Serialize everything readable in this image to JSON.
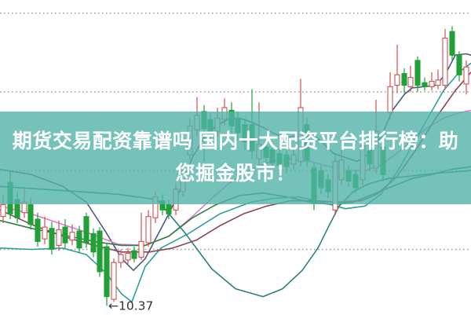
{
  "headline": {
    "line1": "期货交易配资靠谱吗 国内十大配资平台排行榜：助",
    "line2": "您掘金股市！",
    "text_color": "#ffffff",
    "banner_color": "rgba(81,179,169,0.8)"
  },
  "chart_data": {
    "type": "candlestick",
    "title": "",
    "xlabel": "",
    "ylabel": "",
    "grid": true,
    "legend": false,
    "ylim": [
      10.3,
      12.7
    ],
    "gridline_prices": [
      12.6,
      12.0,
      11.4,
      10.8
    ],
    "grid_color": "#9a9a9a",
    "up_color": "#cf5050",
    "down_color": "#21a038",
    "background_color": "#ffffff",
    "annotation": {
      "arrow": "←",
      "text": "10.37",
      "candle_x": 136,
      "price": 10.37,
      "color": "#333333"
    },
    "candle_body_width": 6,
    "candles": [
      [
        4,
        11.05,
        11.22,
        11.0,
        11.14
      ],
      [
        13,
        11.31,
        11.4,
        11.03,
        11.07
      ],
      [
        22,
        11.18,
        11.24,
        11.0,
        11.04
      ],
      [
        31,
        11.08,
        11.28,
        11.04,
        11.16
      ],
      [
        39,
        11.14,
        11.19,
        10.95,
        10.99
      ],
      [
        48,
        11.03,
        11.08,
        10.82,
        10.86
      ],
      [
        57,
        10.88,
        11.05,
        10.84,
        10.97
      ],
      [
        66,
        10.96,
        11.01,
        10.76,
        10.8
      ],
      [
        75,
        10.83,
        11.02,
        10.79,
        10.95
      ],
      [
        83,
        10.97,
        11.03,
        10.81,
        10.85
      ],
      [
        92,
        10.87,
        10.99,
        10.83,
        10.93
      ],
      [
        101,
        10.94,
        10.98,
        10.77,
        10.81
      ],
      [
        110,
        11.05,
        11.08,
        10.81,
        10.85
      ],
      [
        119,
        10.92,
        10.96,
        10.74,
        10.78
      ],
      [
        127,
        10.94,
        10.97,
        10.59,
        10.63
      ],
      [
        136,
        10.82,
        10.85,
        10.37,
        10.44
      ],
      [
        145,
        10.42,
        10.73,
        10.4,
        10.7
      ],
      [
        154,
        10.7,
        10.8,
        10.66,
        10.76
      ],
      [
        163,
        10.72,
        10.81,
        10.69,
        10.77
      ],
      [
        171,
        10.79,
        10.82,
        10.7,
        10.73
      ],
      [
        180,
        10.74,
        11.08,
        10.72,
        10.86
      ],
      [
        189,
        10.85,
        11.1,
        10.82,
        11.05
      ],
      [
        198,
        11.04,
        11.24,
        11.0,
        11.2
      ],
      [
        207,
        11.17,
        11.22,
        11.06,
        11.1
      ],
      [
        215,
        11.14,
        11.18,
        11.03,
        11.07
      ],
      [
        224,
        11.1,
        11.3,
        11.06,
        11.26
      ],
      [
        233,
        11.24,
        11.45,
        11.2,
        11.4
      ],
      [
        242,
        11.52,
        11.8,
        11.48,
        11.74
      ],
      [
        251,
        11.71,
        11.96,
        11.66,
        11.82
      ],
      [
        260,
        11.85,
        11.9,
        11.47,
        11.72
      ],
      [
        268,
        11.79,
        11.84,
        11.62,
        11.68
      ],
      [
        277,
        11.7,
        11.88,
        11.66,
        11.8
      ],
      [
        286,
        11.79,
        11.95,
        11.74,
        11.88
      ],
      [
        295,
        11.86,
        11.92,
        11.69,
        11.74
      ],
      [
        303,
        11.8,
        11.85,
        11.63,
        11.69
      ],
      [
        312,
        11.75,
        11.8,
        11.56,
        11.62
      ],
      [
        321,
        11.75,
        12.02,
        11.49,
        11.55
      ],
      [
        330,
        11.49,
        11.92,
        11.44,
        11.6
      ],
      [
        339,
        11.58,
        11.63,
        11.46,
        11.5
      ],
      [
        347,
        11.56,
        11.6,
        11.42,
        11.46
      ],
      [
        356,
        11.53,
        11.57,
        11.4,
        11.44
      ],
      [
        365,
        11.52,
        11.56,
        11.38,
        11.43
      ],
      [
        374,
        11.45,
        11.57,
        11.41,
        11.52
      ],
      [
        383,
        11.47,
        12.1,
        11.43,
        11.88
      ],
      [
        391,
        11.75,
        11.8,
        11.43,
        11.48
      ],
      [
        400,
        11.42,
        11.46,
        11.1,
        11.15
      ],
      [
        409,
        11.4,
        11.44,
        11.22,
        11.27
      ],
      [
        418,
        11.33,
        11.37,
        11.19,
        11.24
      ],
      [
        427,
        11.1,
        11.52,
        11.06,
        11.47
      ],
      [
        435,
        11.33,
        11.56,
        11.29,
        11.48
      ],
      [
        444,
        11.4,
        11.44,
        11.28,
        11.32
      ],
      [
        453,
        11.37,
        11.41,
        11.23,
        11.27
      ],
      [
        462,
        11.33,
        11.64,
        11.29,
        11.59
      ],
      [
        471,
        11.55,
        11.6,
        11.4,
        11.45
      ],
      [
        479,
        11.42,
        11.94,
        11.38,
        11.7
      ],
      [
        488,
        11.58,
        11.63,
        11.32,
        11.37
      ],
      [
        497,
        11.84,
        12.15,
        11.79,
        12.04
      ],
      [
        506,
        12.05,
        12.36,
        11.99,
        12.13
      ],
      [
        515,
        12.14,
        12.18,
        11.99,
        12.05
      ],
      [
        523,
        12.04,
        12.2,
        12.0,
        12.11
      ],
      [
        532,
        12.24,
        12.27,
        12.0,
        12.05
      ],
      [
        541,
        12.07,
        12.11,
        12.01,
        12.04
      ],
      [
        550,
        12.04,
        12.15,
        12.01,
        12.08
      ],
      [
        558,
        12.05,
        12.17,
        12.02,
        12.09
      ],
      [
        567,
        12.05,
        12.48,
        12.02,
        12.41
      ],
      [
        576,
        12.46,
        12.5,
        12.24,
        12.28
      ],
      [
        585,
        12.28,
        12.31,
        12.08,
        12.13
      ],
      [
        594,
        12.06,
        12.24,
        11.98,
        12.19
      ]
    ],
    "ma_lines": [
      {
        "name": "ma-slate",
        "color": "#4a5a80",
        "points": [
          [
            0,
            11.41
          ],
          [
            40,
            11.37
          ],
          [
            80,
            11.28
          ],
          [
            110,
            11.16
          ],
          [
            135,
            10.93
          ],
          [
            155,
            10.73
          ],
          [
            170,
            10.64
          ],
          [
            185,
            10.73
          ],
          [
            200,
            10.9
          ],
          [
            215,
            11.07
          ],
          [
            230,
            11.26
          ],
          [
            245,
            11.5
          ],
          [
            260,
            11.65
          ],
          [
            275,
            11.74
          ],
          [
            290,
            11.79
          ],
          [
            305,
            11.8
          ],
          [
            320,
            11.77
          ],
          [
            335,
            11.73
          ],
          [
            350,
            11.68
          ],
          [
            365,
            11.65
          ],
          [
            380,
            11.67
          ],
          [
            395,
            11.69
          ],
          [
            410,
            11.62
          ],
          [
            425,
            11.53
          ],
          [
            440,
            11.5
          ],
          [
            455,
            11.47
          ],
          [
            470,
            11.53
          ],
          [
            485,
            11.65
          ],
          [
            500,
            11.86
          ],
          [
            515,
            11.98
          ],
          [
            525,
            12.03
          ],
          [
            540,
            12.04
          ],
          [
            555,
            12.05
          ],
          [
            567,
            12.13
          ],
          [
            580,
            12.28
          ],
          [
            594,
            12.29
          ],
          [
            600,
            12.28
          ]
        ]
      },
      {
        "name": "ma-pink",
        "color": "#e678d2",
        "points": [
          [
            0,
            11.13
          ],
          [
            40,
            11.07
          ],
          [
            80,
            10.99
          ],
          [
            115,
            10.92
          ],
          [
            150,
            10.84
          ],
          [
            185,
            10.83
          ],
          [
            215,
            10.9
          ],
          [
            245,
            11.05
          ],
          [
            270,
            11.19
          ],
          [
            295,
            11.32
          ],
          [
            320,
            11.41
          ],
          [
            345,
            11.47
          ],
          [
            370,
            11.49
          ],
          [
            395,
            11.47
          ],
          [
            420,
            11.43
          ],
          [
            445,
            11.4
          ],
          [
            465,
            11.4
          ],
          [
            485,
            11.44
          ],
          [
            505,
            11.53
          ],
          [
            525,
            11.63
          ],
          [
            545,
            11.73
          ],
          [
            565,
            11.8
          ],
          [
            585,
            11.84
          ],
          [
            600,
            11.86
          ]
        ]
      },
      {
        "name": "ma-green",
        "color": "#2e7d46",
        "points": [
          [
            0,
            11.02
          ],
          [
            40,
            10.96
          ],
          [
            80,
            10.91
          ],
          [
            120,
            10.86
          ],
          [
            155,
            10.83
          ],
          [
            185,
            10.83
          ],
          [
            215,
            10.9
          ],
          [
            245,
            11.04
          ],
          [
            275,
            11.14
          ],
          [
            305,
            11.21
          ],
          [
            335,
            11.23
          ],
          [
            365,
            11.2
          ],
          [
            395,
            11.16
          ],
          [
            425,
            11.14
          ],
          [
            450,
            11.16
          ],
          [
            475,
            11.22
          ],
          [
            500,
            11.28
          ],
          [
            525,
            11.34
          ],
          [
            550,
            11.37
          ],
          [
            575,
            11.41
          ],
          [
            600,
            11.43
          ]
        ]
      },
      {
        "name": "ma-teal-fast",
        "color": "#2f9e9e",
        "points": [
          [
            0,
            10.81
          ],
          [
            40,
            10.8
          ],
          [
            80,
            10.81
          ],
          [
            110,
            10.76
          ],
          [
            135,
            10.62
          ],
          [
            155,
            10.46
          ],
          [
            168,
            10.4
          ],
          [
            185,
            10.67
          ],
          [
            205,
            10.81
          ],
          [
            240,
            10.92
          ],
          [
            280,
            11.07
          ],
          [
            320,
            11.16
          ],
          [
            350,
            11.19
          ],
          [
            380,
            11.2
          ],
          [
            410,
            11.16
          ],
          [
            440,
            11.11
          ],
          [
            465,
            11.13
          ],
          [
            485,
            11.22
          ],
          [
            505,
            11.38
          ],
          [
            525,
            11.59
          ],
          [
            545,
            11.8
          ],
          [
            565,
            12.01
          ],
          [
            585,
            12.15
          ],
          [
            600,
            12.22
          ]
        ]
      },
      {
        "name": "ma-teal-slow",
        "color": "#2a7f7f",
        "points": [
          [
            0,
            11.28
          ],
          [
            50,
            11.26
          ],
          [
            100,
            11.24
          ],
          [
            150,
            11.22
          ],
          [
            200,
            11.18
          ],
          [
            235,
            10.93
          ],
          [
            270,
            10.65
          ],
          [
            300,
            10.5
          ],
          [
            335,
            10.44
          ],
          [
            360,
            10.5
          ],
          [
            385,
            10.64
          ],
          [
            405,
            10.81
          ],
          [
            420,
            10.99
          ],
          [
            432,
            11.13
          ],
          [
            450,
            11.24
          ],
          [
            470,
            11.3
          ],
          [
            495,
            11.34
          ],
          [
            525,
            11.36
          ],
          [
            555,
            11.38
          ],
          [
            600,
            11.4
          ]
        ]
      },
      {
        "name": "ma-maroon",
        "color": "#8c4456",
        "points": [
          [
            0,
            11.1
          ],
          [
            40,
            10.99
          ],
          [
            80,
            10.9
          ],
          [
            120,
            10.83
          ],
          [
            155,
            10.78
          ],
          [
            190,
            10.78
          ],
          [
            220,
            10.81
          ],
          [
            250,
            10.87
          ],
          [
            280,
            10.98
          ],
          [
            310,
            11.07
          ],
          [
            340,
            11.13
          ],
          [
            370,
            11.17
          ],
          [
            400,
            11.17
          ],
          [
            430,
            11.16
          ],
          [
            460,
            11.17
          ],
          [
            480,
            11.22
          ],
          [
            505,
            11.35
          ],
          [
            530,
            11.56
          ],
          [
            555,
            11.8
          ],
          [
            580,
            12.01
          ],
          [
            600,
            12.15
          ]
        ]
      }
    ]
  }
}
